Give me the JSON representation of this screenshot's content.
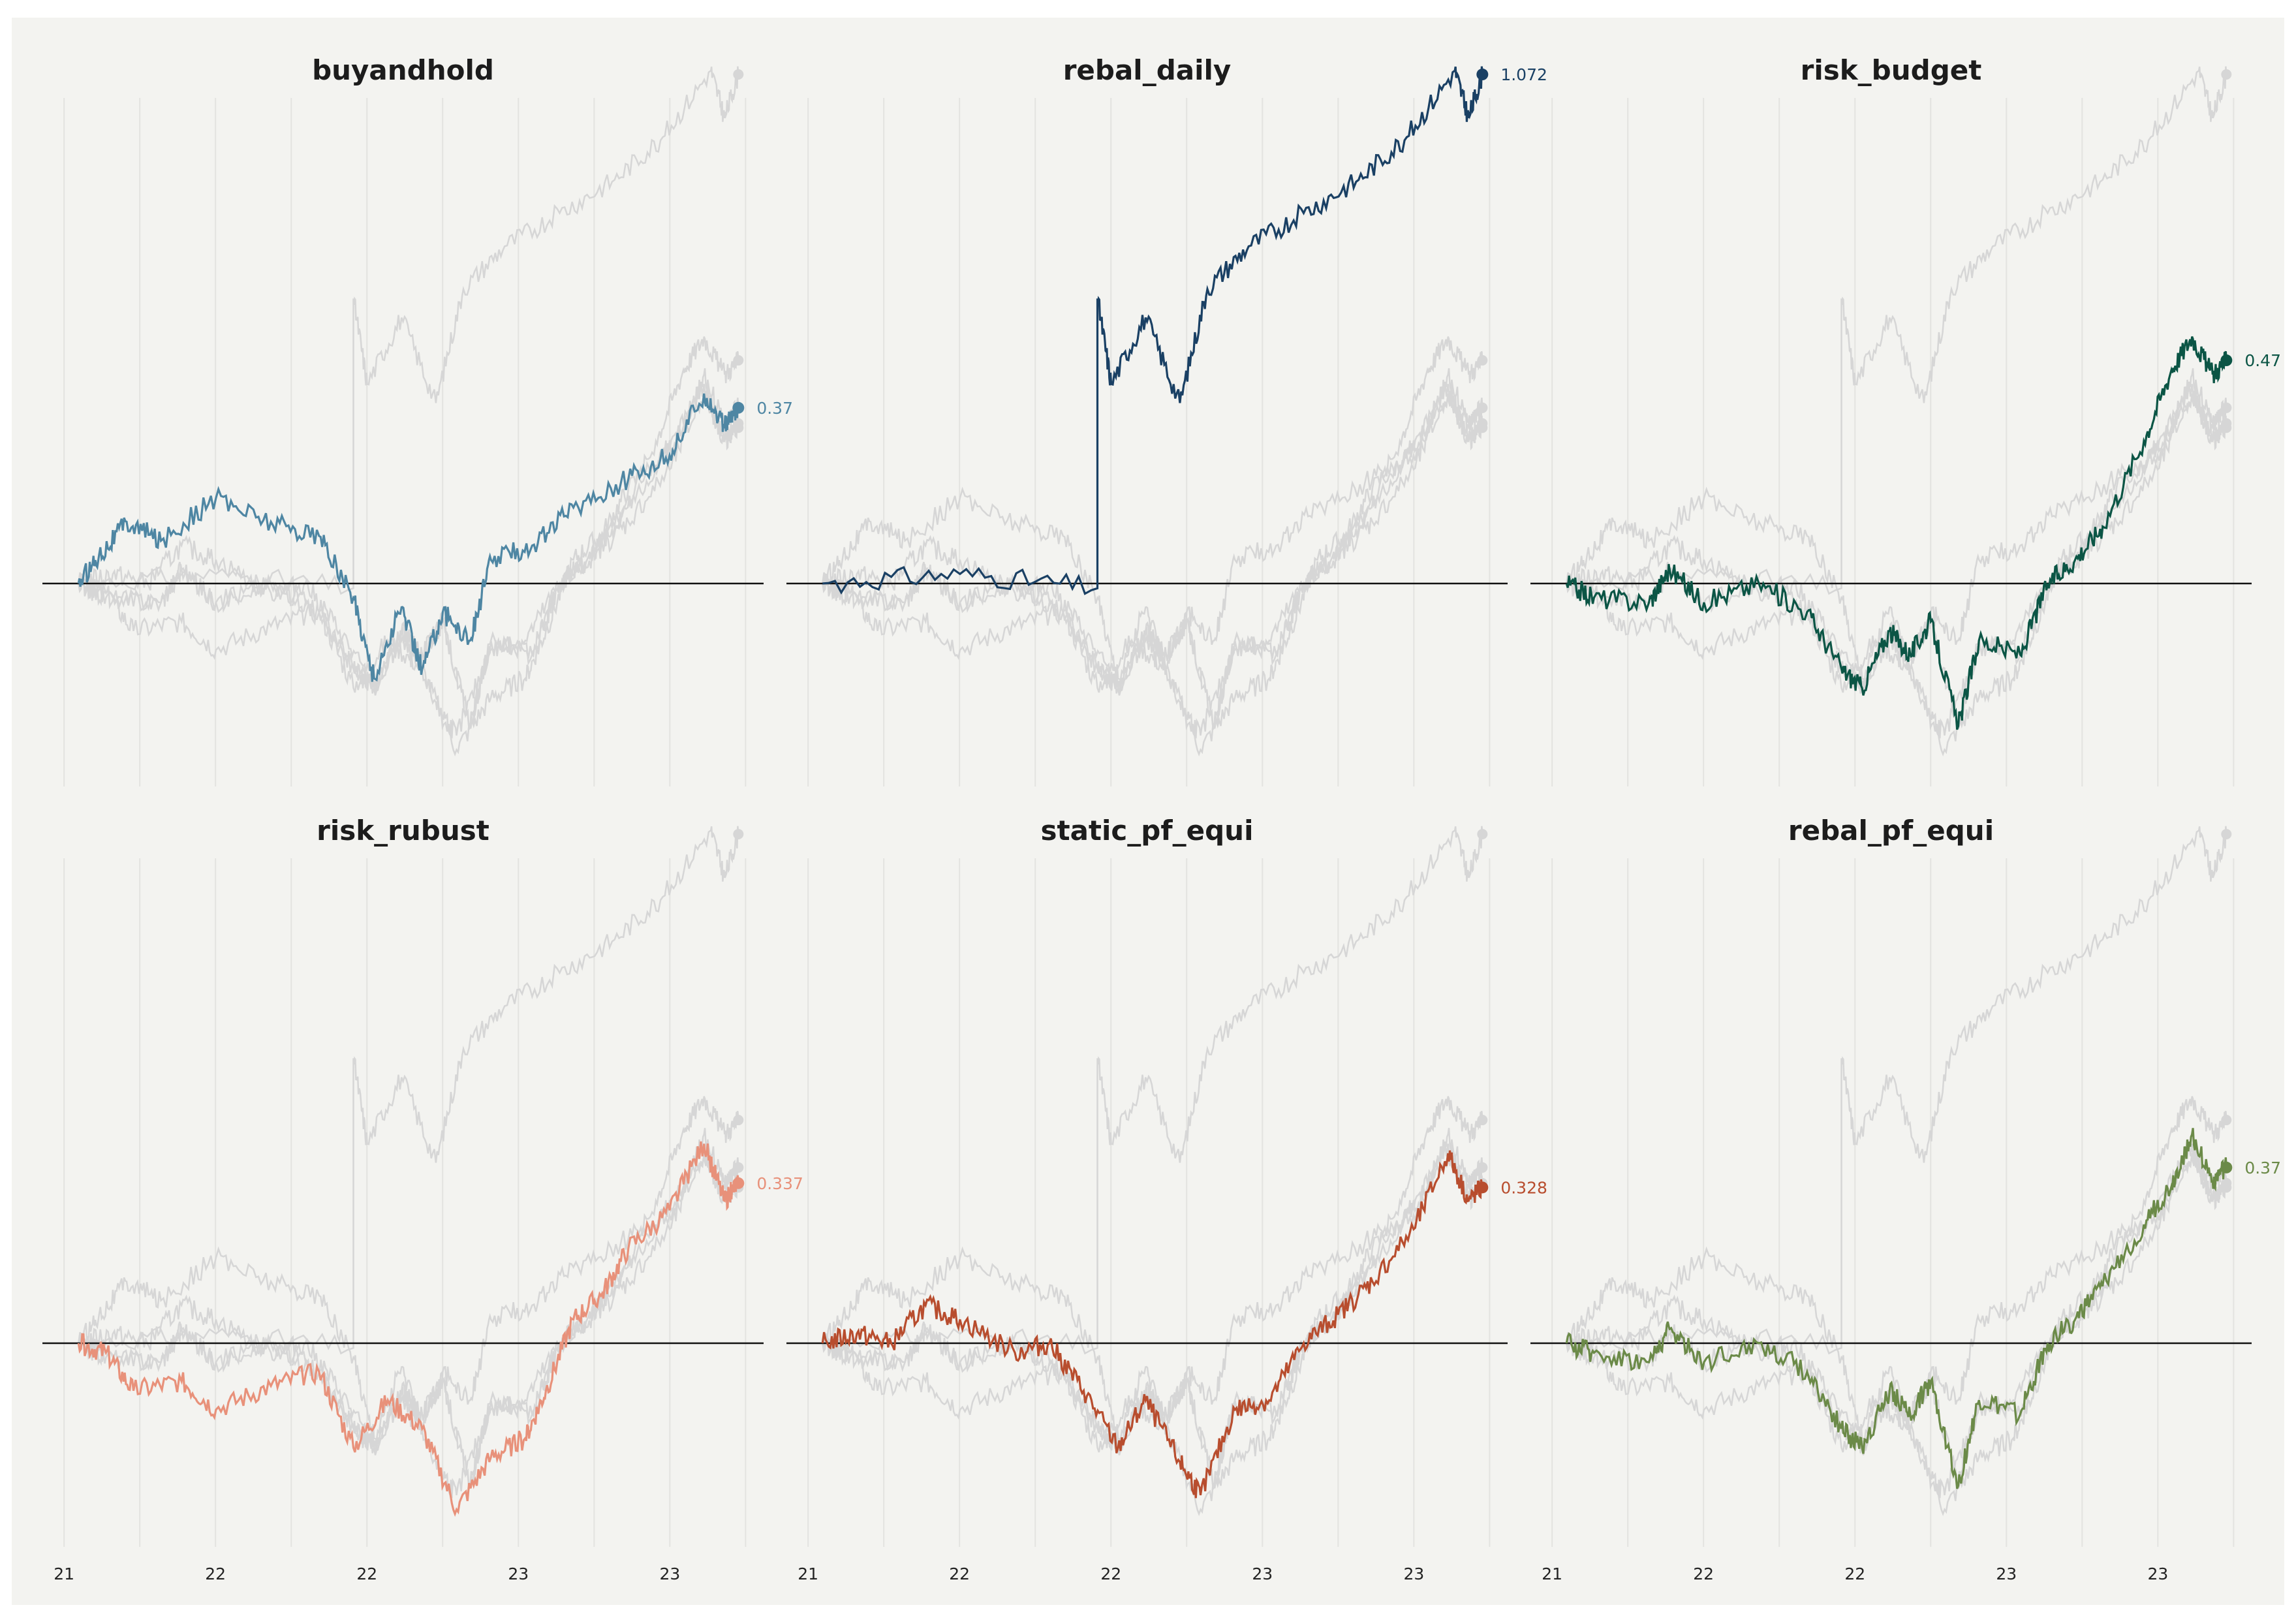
{
  "chart_data": {
    "type": "line",
    "layout": "small multiples, 2 rows x 3 columns; each panel highlights one strategy over grey background series of the other strategies",
    "x_tick_labels": [
      "21",
      "22",
      "22",
      "23",
      "23"
    ],
    "x": [
      "2021-01",
      "2021-07",
      "2022-01",
      "2022-07",
      "2023-01",
      "2023-07",
      "2023-09"
    ],
    "baseline": 0,
    "ylim": [
      -0.35,
      1.1
    ],
    "ylabel": "",
    "xlabel": "",
    "grid": "vertical light gridlines",
    "background_series_color": "#d6d6d6",
    "series": [
      {
        "name": "buyandhold",
        "color": "#4e86a3",
        "end_label": "0.37",
        "end_value": 0.37,
        "anchors": [
          [
            0,
            0
          ],
          [
            0.03,
            0.06
          ],
          [
            0.07,
            0.13
          ],
          [
            0.12,
            0.09
          ],
          [
            0.2,
            0.18
          ],
          [
            0.28,
            0.13
          ],
          [
            0.35,
            0.1
          ],
          [
            0.4,
            -0.03
          ],
          [
            0.43,
            -0.2
          ],
          [
            0.47,
            -0.05
          ],
          [
            0.5,
            -0.18
          ],
          [
            0.53,
            -0.06
          ],
          [
            0.57,
            -0.12
          ],
          [
            0.6,
            0.05
          ],
          [
            0.66,
            0.08
          ],
          [
            0.72,
            0.16
          ],
          [
            0.8,
            0.22
          ],
          [
            0.86,
            0.27
          ],
          [
            0.91,
            0.4
          ],
          [
            0.94,
            0.33
          ],
          [
            0.96,
            0.37
          ]
        ]
      },
      {
        "name": "rebal_daily",
        "color": "#1a4064",
        "end_label": "1.072",
        "end_value": 1.072,
        "anchors": [
          [
            0,
            0
          ],
          [
            0.2,
            0.02
          ],
          [
            0.4,
            -0.01
          ],
          [
            0.4,
            0.6
          ],
          [
            0.42,
            0.42
          ],
          [
            0.47,
            0.56
          ],
          [
            0.52,
            0.38
          ],
          [
            0.56,
            0.62
          ],
          [
            0.62,
            0.71
          ],
          [
            0.7,
            0.78
          ],
          [
            0.78,
            0.85
          ],
          [
            0.85,
            0.94
          ],
          [
            0.92,
            1.08
          ],
          [
            0.94,
            0.98
          ],
          [
            0.96,
            1.072
          ]
        ]
      },
      {
        "name": "risk_budget",
        "color": "#0b5545",
        "end_label": "0.47",
        "end_value": 0.47,
        "anchors": [
          [
            0,
            0
          ],
          [
            0.04,
            -0.03
          ],
          [
            0.12,
            -0.04
          ],
          [
            0.15,
            0.03
          ],
          [
            0.2,
            -0.04
          ],
          [
            0.28,
            0.0
          ],
          [
            0.35,
            -0.06
          ],
          [
            0.4,
            -0.18
          ],
          [
            0.43,
            -0.22
          ],
          [
            0.47,
            -0.1
          ],
          [
            0.5,
            -0.15
          ],
          [
            0.53,
            -0.08
          ],
          [
            0.57,
            -0.3
          ],
          [
            0.6,
            -0.12
          ],
          [
            0.66,
            -0.15
          ],
          [
            0.7,
            0.0
          ],
          [
            0.74,
            0.05
          ],
          [
            0.78,
            0.12
          ],
          [
            0.84,
            0.3
          ],
          [
            0.88,
            0.45
          ],
          [
            0.91,
            0.52
          ],
          [
            0.94,
            0.44
          ],
          [
            0.96,
            0.47
          ]
        ]
      },
      {
        "name": "risk_rubust",
        "color": "#e8917a",
        "end_label": "0.337",
        "end_value": 0.337,
        "anchors": [
          [
            0,
            0
          ],
          [
            0.04,
            -0.02
          ],
          [
            0.08,
            -0.1
          ],
          [
            0.15,
            -0.08
          ],
          [
            0.2,
            -0.14
          ],
          [
            0.28,
            -0.09
          ],
          [
            0.35,
            -0.06
          ],
          [
            0.4,
            -0.22
          ],
          [
            0.45,
            -0.12
          ],
          [
            0.5,
            -0.18
          ],
          [
            0.55,
            -0.35
          ],
          [
            0.6,
            -0.24
          ],
          [
            0.65,
            -0.2
          ],
          [
            0.68,
            -0.1
          ],
          [
            0.72,
            0.05
          ],
          [
            0.76,
            0.1
          ],
          [
            0.8,
            0.2
          ],
          [
            0.86,
            0.28
          ],
          [
            0.91,
            0.42
          ],
          [
            0.94,
            0.3
          ],
          [
            0.96,
            0.337
          ]
        ]
      },
      {
        "name": "static_pf_equi",
        "color": "#b84d2e",
        "end_label": "0.328",
        "end_value": 0.328,
        "anchors": [
          [
            0,
            0
          ],
          [
            0.05,
            0.02
          ],
          [
            0.1,
            0.0
          ],
          [
            0.15,
            0.08
          ],
          [
            0.2,
            0.05
          ],
          [
            0.28,
            -0.02
          ],
          [
            0.33,
            0.0
          ],
          [
            0.38,
            -0.1
          ],
          [
            0.43,
            -0.22
          ],
          [
            0.47,
            -0.12
          ],
          [
            0.52,
            -0.25
          ],
          [
            0.55,
            -0.32
          ],
          [
            0.6,
            -0.14
          ],
          [
            0.65,
            -0.12
          ],
          [
            0.7,
            0.0
          ],
          [
            0.75,
            0.06
          ],
          [
            0.8,
            0.13
          ],
          [
            0.86,
            0.24
          ],
          [
            0.91,
            0.4
          ],
          [
            0.94,
            0.3
          ],
          [
            0.96,
            0.328
          ]
        ]
      },
      {
        "name": "rebal_pf_equi",
        "color": "#6b8a48",
        "end_label": "0.37",
        "end_value": 0.37,
        "anchors": [
          [
            0,
            0
          ],
          [
            0.04,
            -0.02
          ],
          [
            0.12,
            -0.04
          ],
          [
            0.15,
            0.03
          ],
          [
            0.2,
            -0.04
          ],
          [
            0.28,
            0.0
          ],
          [
            0.35,
            -0.06
          ],
          [
            0.4,
            -0.18
          ],
          [
            0.43,
            -0.22
          ],
          [
            0.47,
            -0.1
          ],
          [
            0.5,
            -0.15
          ],
          [
            0.53,
            -0.08
          ],
          [
            0.57,
            -0.3
          ],
          [
            0.6,
            -0.12
          ],
          [
            0.66,
            -0.15
          ],
          [
            0.7,
            0.0
          ],
          [
            0.74,
            0.05
          ],
          [
            0.78,
            0.12
          ],
          [
            0.84,
            0.25
          ],
          [
            0.88,
            0.33
          ],
          [
            0.91,
            0.44
          ],
          [
            0.94,
            0.34
          ],
          [
            0.96,
            0.37
          ]
        ]
      }
    ]
  }
}
